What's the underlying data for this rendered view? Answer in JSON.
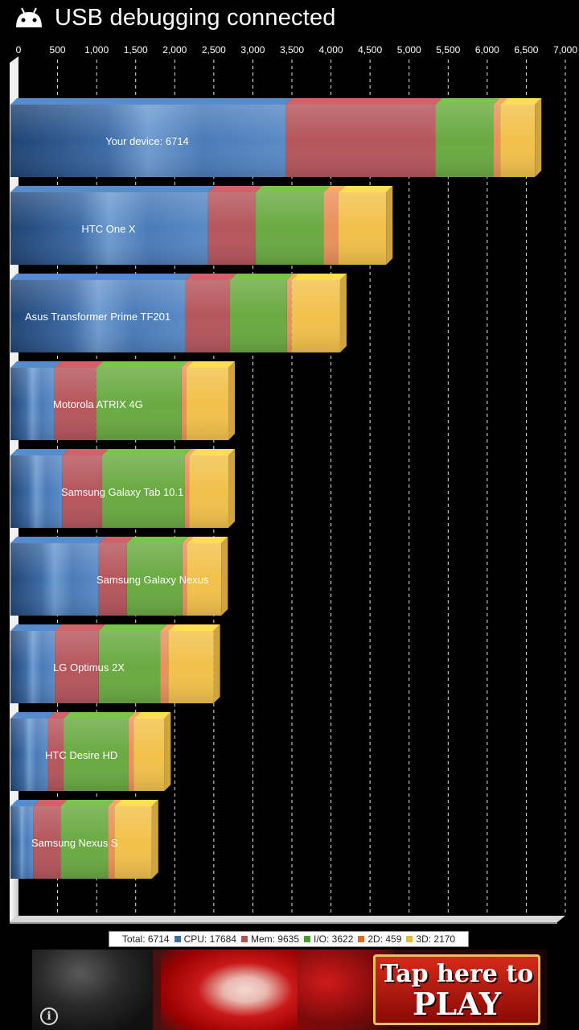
{
  "status_bar": {
    "notification_text": "USB debugging connected",
    "icon": "android-debug-icon"
  },
  "colors": {
    "cpu": "#4a79b4",
    "mem": "#b5565c",
    "io": "#6aaa42",
    "2d": "#e9915a",
    "3d": "#f2c14b"
  },
  "chart_data": {
    "type": "bar",
    "orientation": "horizontal",
    "stacked": true,
    "xlim": [
      0,
      7000
    ],
    "x_ticks": [
      "0",
      "500",
      "1,000",
      "1,500",
      "2,000",
      "2,500",
      "3,000",
      "3,500",
      "4,000",
      "4,500",
      "5,000",
      "5,500",
      "6,000",
      "6,500",
      "7,000"
    ],
    "grid": true,
    "categories": [
      "Your device: 6714",
      "HTC One X",
      "Asus Transformer Prime TF201",
      "Motorola ATRIX 4G",
      "Samsung Galaxy Tab 10.1",
      "Samsung Galaxy Nexus",
      "LG Optimus 2X",
      "HTC Desire HD",
      "Samsung Nexus S"
    ],
    "series": [
      {
        "name": "CPU",
        "color": "#4a79b4",
        "values": [
          3520,
          2530,
          2240,
          560,
          660,
          1130,
          570,
          480,
          290
        ]
      },
      {
        "name": "Mem",
        "color": "#b5565c",
        "values": [
          1920,
          610,
          570,
          540,
          510,
          360,
          560,
          200,
          350
        ]
      },
      {
        "name": "I/O",
        "color": "#6aaa42",
        "values": [
          740,
          870,
          730,
          1090,
          1060,
          710,
          790,
          830,
          610
        ]
      },
      {
        "name": "2D",
        "color": "#e9915a",
        "values": [
          90,
          190,
          60,
          60,
          60,
          60,
          100,
          70,
          80
        ]
      },
      {
        "name": "3D",
        "color": "#f2c14b",
        "values": [
          444,
          610,
          620,
          540,
          500,
          440,
          580,
          390,
          480
        ]
      }
    ],
    "legend_position": "bottom"
  },
  "legend": {
    "total": "Total: 6714",
    "cpu": "CPU: 17684",
    "mem": "Mem: 9635",
    "io": "I/O: 3622",
    "d2": "2D: 459",
    "d3": "3D: 2170"
  },
  "ad": {
    "cta_line1": "Tap here to",
    "cta_line2": "PLAY",
    "info_glyph": "i"
  }
}
